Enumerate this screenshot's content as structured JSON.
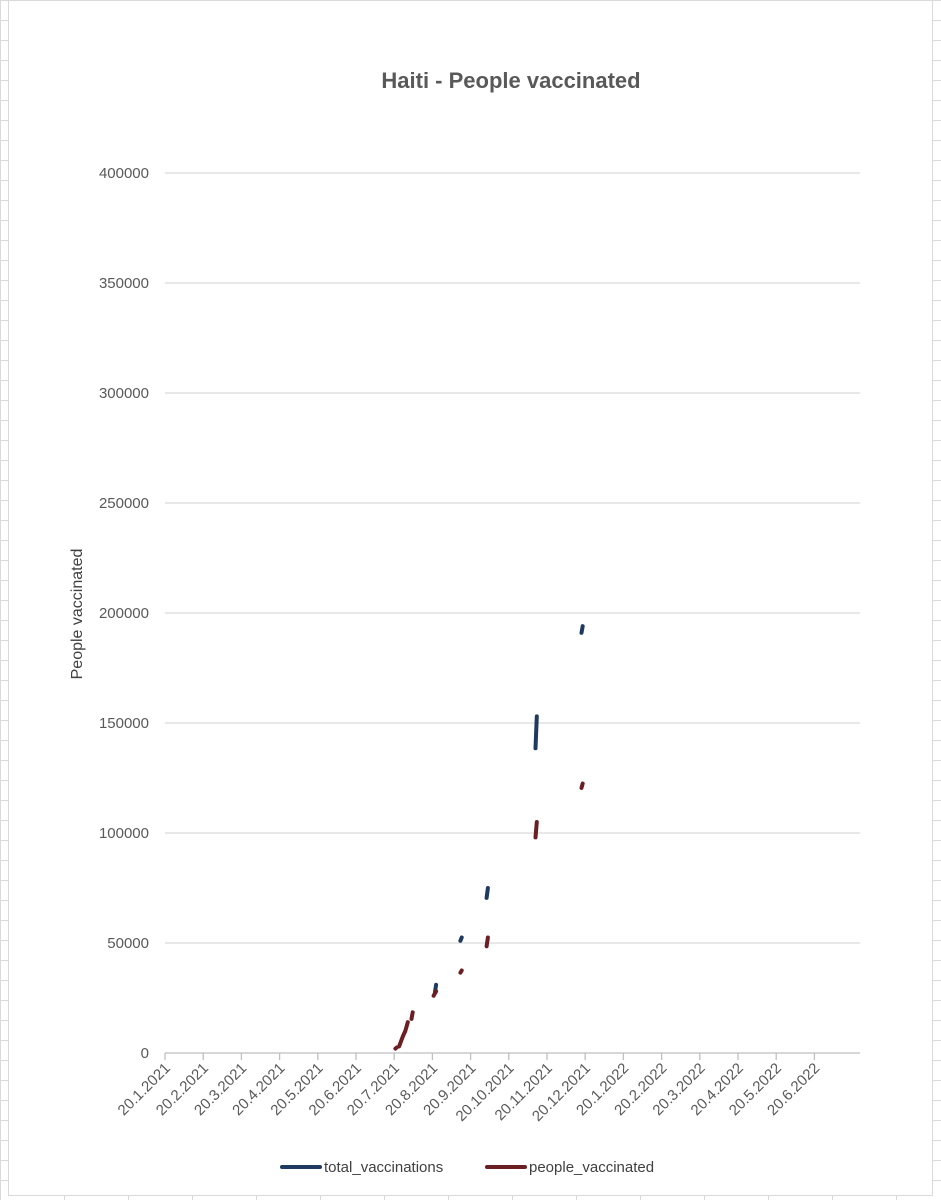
{
  "chart_data": {
    "type": "line",
    "title": "Haiti - People vaccinated",
    "xlabel": "",
    "ylabel": "People vaccinated",
    "ylim": [
      0,
      400000
    ],
    "y_ticks": [
      0,
      50000,
      100000,
      150000,
      200000,
      250000,
      300000,
      350000,
      400000
    ],
    "y_tick_labels": [
      "0",
      "50000",
      "100000",
      "150000",
      "200000",
      "250000",
      "300000",
      "350000",
      "400000"
    ],
    "x_tick_labels": [
      "20.1.2021",
      "20.2.2021",
      "20.3.2021",
      "20.4.2021",
      "20.5.2021",
      "20.6.2021",
      "20.7.2021",
      "20.8.2021",
      "20.9.2021",
      "20.10.2021",
      "20.11.2021",
      "20.12.2021",
      "20.1.2022",
      "20.2.2022",
      "20.3.2022",
      "20.4.2022",
      "20.5.2022",
      "20.6.2022"
    ],
    "grid": true,
    "legend_position": "bottom",
    "series": [
      {
        "name": "total_vaccinations",
        "color": "#1f3a5f",
        "segments": [
          [
            [
              "2021-08-22",
              27500
            ],
            [
              "2021-08-23",
              31000
            ]
          ],
          [
            [
              "2021-09-12",
              51000
            ],
            [
              "2021-09-13",
              52500
            ]
          ],
          [
            [
              "2021-10-02",
              70500
            ],
            [
              "2021-10-03",
              75000
            ]
          ],
          [
            [
              "2021-11-11",
              138500
            ],
            [
              "2021-11-12",
              153000
            ]
          ],
          [
            [
              "2021-12-17",
              191000
            ],
            [
              "2021-12-18",
              194000
            ]
          ]
        ]
      },
      {
        "name": "people_vaccinated",
        "color": "#6b1f23",
        "segments": [
          [
            [
              "2021-07-21",
              2000
            ],
            [
              "2021-07-22",
              2500
            ]
          ],
          [
            [
              "2021-07-24",
              3000
            ],
            [
              "2021-07-27",
              7500
            ],
            [
              "2021-07-29",
              10000
            ],
            [
              "2021-07-31",
              14000
            ]
          ],
          [
            [
              "2021-08-03",
              15500
            ],
            [
              "2021-08-04",
              18500
            ]
          ],
          [
            [
              "2021-08-21",
              26000
            ],
            [
              "2021-08-23",
              28000
            ]
          ],
          [
            [
              "2021-09-12",
              36500
            ],
            [
              "2021-09-13",
              37500
            ]
          ],
          [
            [
              "2021-10-02",
              48500
            ],
            [
              "2021-10-03",
              52500
            ]
          ],
          [
            [
              "2021-11-11",
              98000
            ],
            [
              "2021-11-12",
              105000
            ]
          ],
          [
            [
              "2021-12-17",
              120500
            ],
            [
              "2021-12-18",
              122500
            ]
          ]
        ]
      }
    ]
  }
}
